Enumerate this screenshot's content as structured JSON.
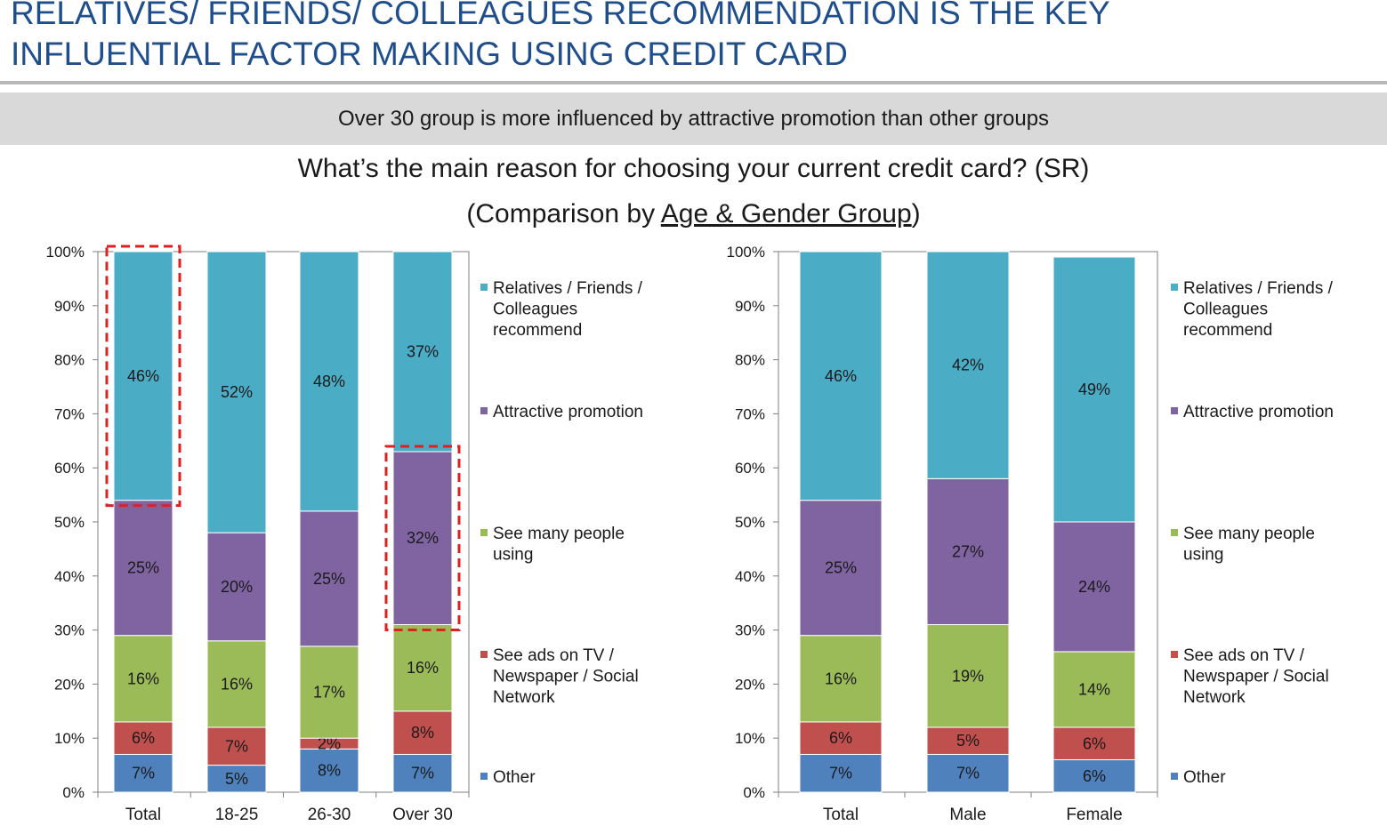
{
  "headline": {
    "line1": "RELATIVES/ FRIENDS/ COLLEAGUES RECOMMENDATION IS THE KEY",
    "line2": "INFLUENTIAL FACTOR MAKING USING CREDIT CARD"
  },
  "subheading": "Over 30 group is more influenced by attractive promotion than other groups",
  "question": "What’s the main reason for choosing your current credit card? (SR)",
  "comparison": {
    "prefix": "(Comparison by ",
    "underlined": "Age & Gender Group",
    "suffix": ")"
  },
  "colors": {
    "Relatives / Friends / Colleagues recommend": "#4bacc6",
    "Attractive promotion": "#8064a2",
    "See many people using": "#9bbb59",
    "See ads on TV / Newspaper / Social Network": "#c0504d",
    "Other": "#4f81bd",
    "highlight": "#e02020"
  },
  "chart_data": [
    {
      "type": "bar",
      "stacked": true,
      "percent": true,
      "categories": [
        "Total",
        "18-25",
        "26-30",
        "Over 30"
      ],
      "ylim": [
        0,
        100
      ],
      "yticks": [
        "0%",
        "10%",
        "20%",
        "30%",
        "40%",
        "50%",
        "60%",
        "70%",
        "80%",
        "90%",
        "100%"
      ],
      "legend_position": "right",
      "series": [
        {
          "name": "Other",
          "legend_lines": [
            "Other"
          ],
          "values": [
            7,
            5,
            8,
            7
          ]
        },
        {
          "name": "See ads on TV / Newspaper / Social Network",
          "legend_lines": [
            "See ads on TV /",
            "Newspaper / Social",
            "Network"
          ],
          "values": [
            6,
            7,
            2,
            8
          ]
        },
        {
          "name": "See many people using",
          "legend_lines": [
            "See many people",
            "using"
          ],
          "values": [
            16,
            16,
            17,
            16
          ]
        },
        {
          "name": "Attractive promotion",
          "legend_lines": [
            "Attractive promotion"
          ],
          "values": [
            25,
            20,
            25,
            32
          ]
        },
        {
          "name": "Relatives / Friends / Colleagues recommend",
          "legend_lines": [
            "Relatives / Friends /",
            "Colleagues",
            "recommend"
          ],
          "values": [
            46,
            52,
            48,
            37
          ]
        }
      ],
      "highlights": [
        {
          "category": "Total",
          "series": "Relatives / Friends / Colleagues recommend"
        },
        {
          "category": "Over 30",
          "series": "Attractive promotion"
        }
      ]
    },
    {
      "type": "bar",
      "stacked": true,
      "percent": true,
      "categories": [
        "Total",
        "Male",
        "Female"
      ],
      "ylim": [
        0,
        100
      ],
      "yticks": [
        "0%",
        "10%",
        "20%",
        "30%",
        "40%",
        "50%",
        "60%",
        "70%",
        "80%",
        "90%",
        "100%"
      ],
      "legend_position": "right",
      "series": [
        {
          "name": "Other",
          "legend_lines": [
            "Other"
          ],
          "values": [
            7,
            7,
            6
          ]
        },
        {
          "name": "See ads on TV / Newspaper / Social Network",
          "legend_lines": [
            "See ads on TV /",
            "Newspaper / Social",
            "Network"
          ],
          "values": [
            6,
            5,
            6
          ]
        },
        {
          "name": "See many people using",
          "legend_lines": [
            "See many people",
            "using"
          ],
          "values": [
            16,
            19,
            14
          ]
        },
        {
          "name": "Attractive promotion",
          "legend_lines": [
            "Attractive promotion"
          ],
          "values": [
            25,
            27,
            24
          ]
        },
        {
          "name": "Relatives / Friends / Colleagues recommend",
          "legend_lines": [
            "Relatives / Friends /",
            "Colleagues",
            "recommend"
          ],
          "values": [
            46,
            42,
            49
          ]
        }
      ],
      "highlights": []
    }
  ]
}
